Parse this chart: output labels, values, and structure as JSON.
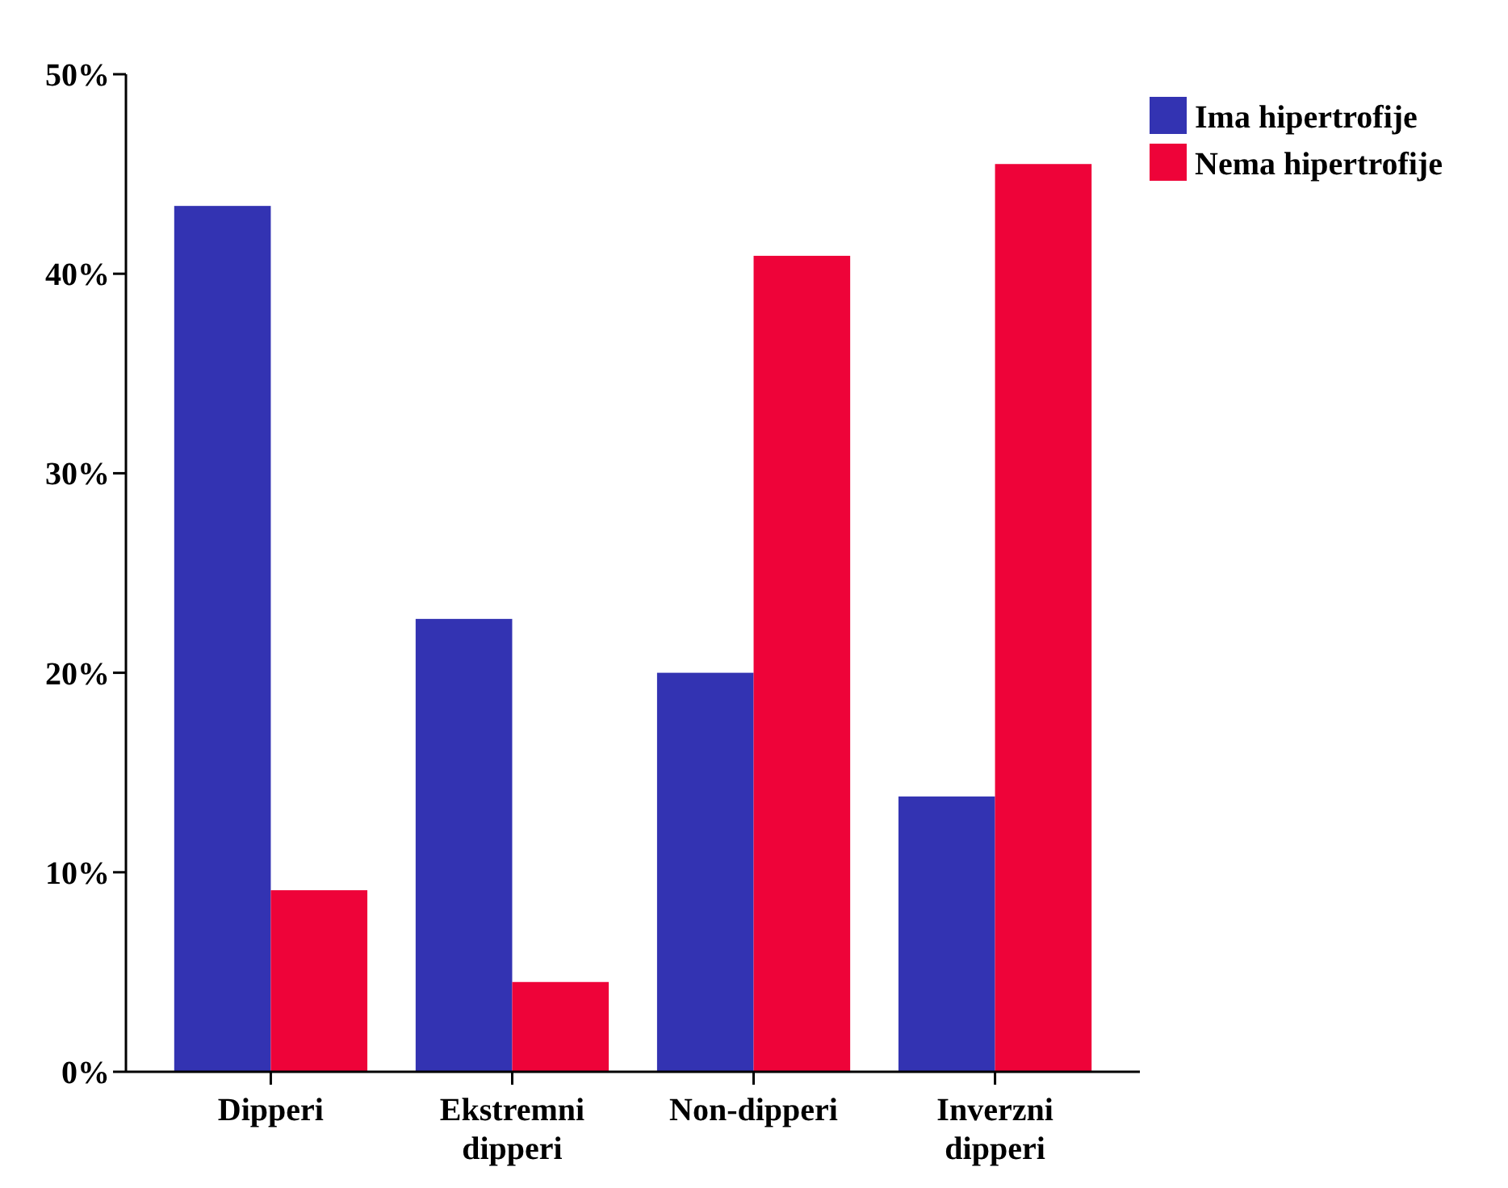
{
  "chart_data": {
    "type": "bar",
    "categories": [
      "Dipperi",
      "Ekstremni dipperi",
      "Non-dipperi",
      "Inverzni dipperi"
    ],
    "series": [
      {
        "name": "Ima hipertrofije",
        "color": "#3333b2",
        "values": [
          43.4,
          22.7,
          20.0,
          13.8
        ]
      },
      {
        "name": "Nema hipertrofije",
        "color": "#ee0339",
        "values": [
          9.1,
          4.5,
          40.9,
          45.5
        ]
      }
    ],
    "ylim": [
      0,
      50
    ],
    "yticks": [
      {
        "value": 0,
        "label": "0%"
      },
      {
        "value": 10,
        "label": "10%"
      },
      {
        "value": 20,
        "label": "20%"
      },
      {
        "value": 30,
        "label": "30%"
      },
      {
        "value": 40,
        "label": "40%"
      },
      {
        "value": 50,
        "label": "50%"
      }
    ],
    "grid": false,
    "legend": "top right"
  }
}
